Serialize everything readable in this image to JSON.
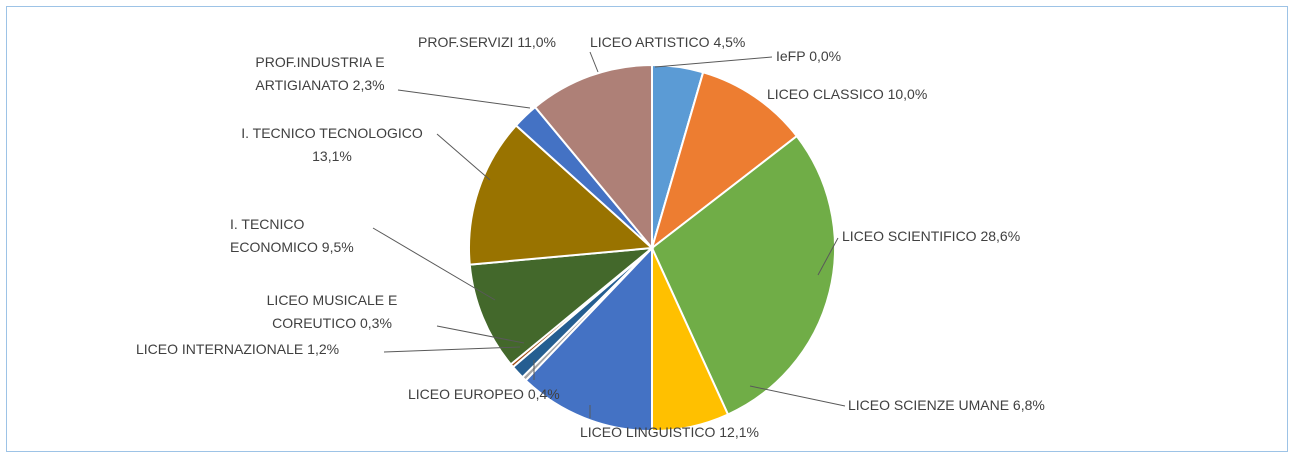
{
  "chart_data": {
    "type": "pie",
    "categories": [
      "LICEO ARTISTICO",
      "IeFP",
      "LICEO CLASSICO",
      "LICEO SCIENTIFICO",
      "LICEO SCIENZE UMANE",
      "LICEO LINGUISTICO",
      "LICEO EUROPEO",
      "LICEO INTERNAZIONALE",
      "LICEO MUSICALE E COREUTICO",
      "I. TECNICO ECONOMICO",
      "I. TECNICO TECNOLOGICO",
      "PROF.INDUSTRIA E ARTIGIANATO",
      "PROF.SERVIZI"
    ],
    "values": [
      4.5,
      0.0,
      10.0,
      28.6,
      6.8,
      12.1,
      0.4,
      1.2,
      0.3,
      9.5,
      13.1,
      2.3,
      11.0
    ],
    "value_labels": [
      "4,5%",
      "0,0%",
      "10,0%",
      "28,6%",
      "6,8%",
      "12,1%",
      "0,4%",
      "1,2%",
      "0,3%",
      "9,5%",
      "13,1%",
      "2,3%",
      "11,0%"
    ],
    "colors": [
      "#5b9bd5",
      "#ed7d31",
      "#ed7d31",
      "#70ad47",
      "#ffc000",
      "#4472c4",
      "#a5a5a5",
      "#255e91",
      "#9e480e",
      "#43682b",
      "#997300",
      "#4472c4",
      "#ae8077"
    ]
  }
}
